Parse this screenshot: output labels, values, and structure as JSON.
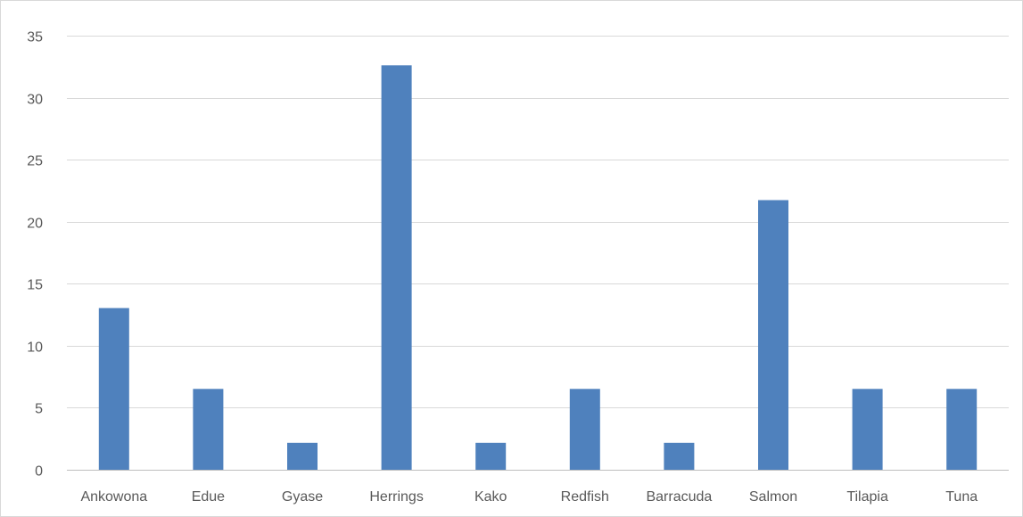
{
  "chart_data": {
    "type": "bar",
    "categories": [
      "Ankowona",
      "Edue",
      "Gyase",
      "Herrings",
      "Kako",
      "Redfish",
      "Barracuda",
      "Salmon",
      "Tilapia",
      "Tuna"
    ],
    "values": [
      13.04,
      6.52,
      2.17,
      32.61,
      2.17,
      6.52,
      2.17,
      21.74,
      6.52,
      6.52
    ],
    "ylim": [
      0,
      35
    ],
    "yticks": [
      0,
      5,
      10,
      15,
      20,
      25,
      30,
      35
    ],
    "grid": true,
    "bar_color": "#4f81bd",
    "grid_color": "#d9d9d9",
    "axis_color": "#bfbfbf"
  }
}
